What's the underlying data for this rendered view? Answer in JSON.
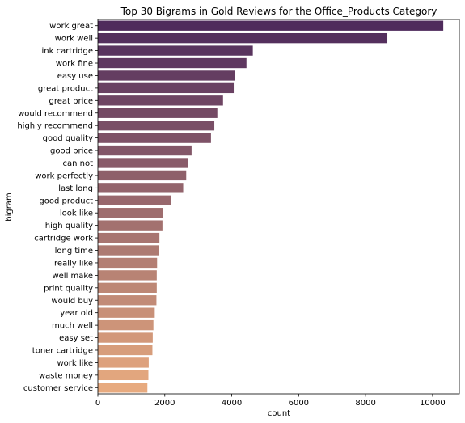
{
  "chart_data": {
    "type": "bar",
    "orientation": "horizontal",
    "title": "Top 30 Bigrams in Gold Reviews for the Office_Products Category",
    "xlabel": "count",
    "ylabel": "bigram",
    "xlim": [
      0,
      10800
    ],
    "xticks": [
      0,
      2000,
      4000,
      6000,
      8000,
      10000
    ],
    "grid": false,
    "categories": [
      "work great",
      "work well",
      "ink cartridge",
      "work fine",
      "easy use",
      "great product",
      "great price",
      "would recommend",
      "highly recommend",
      "good quality",
      "good price",
      "can not",
      "work perfectly",
      "last long",
      "good product",
      "look like",
      "high quality",
      "cartridge work",
      "long time",
      "really like",
      "well make",
      "print quality",
      "would buy",
      "year old",
      "much well",
      "easy set",
      "toner cartridge",
      "work like",
      "waste money",
      "customer service"
    ],
    "values": [
      10320,
      8650,
      4630,
      4440,
      4090,
      4060,
      3740,
      3570,
      3480,
      3380,
      2800,
      2700,
      2640,
      2550,
      2190,
      1950,
      1930,
      1840,
      1820,
      1770,
      1760,
      1760,
      1750,
      1700,
      1660,
      1640,
      1630,
      1520,
      1510,
      1480
    ],
    "palette": "flare",
    "color_start": "#4f2b5c",
    "color_end": "#e7aa7f"
  }
}
